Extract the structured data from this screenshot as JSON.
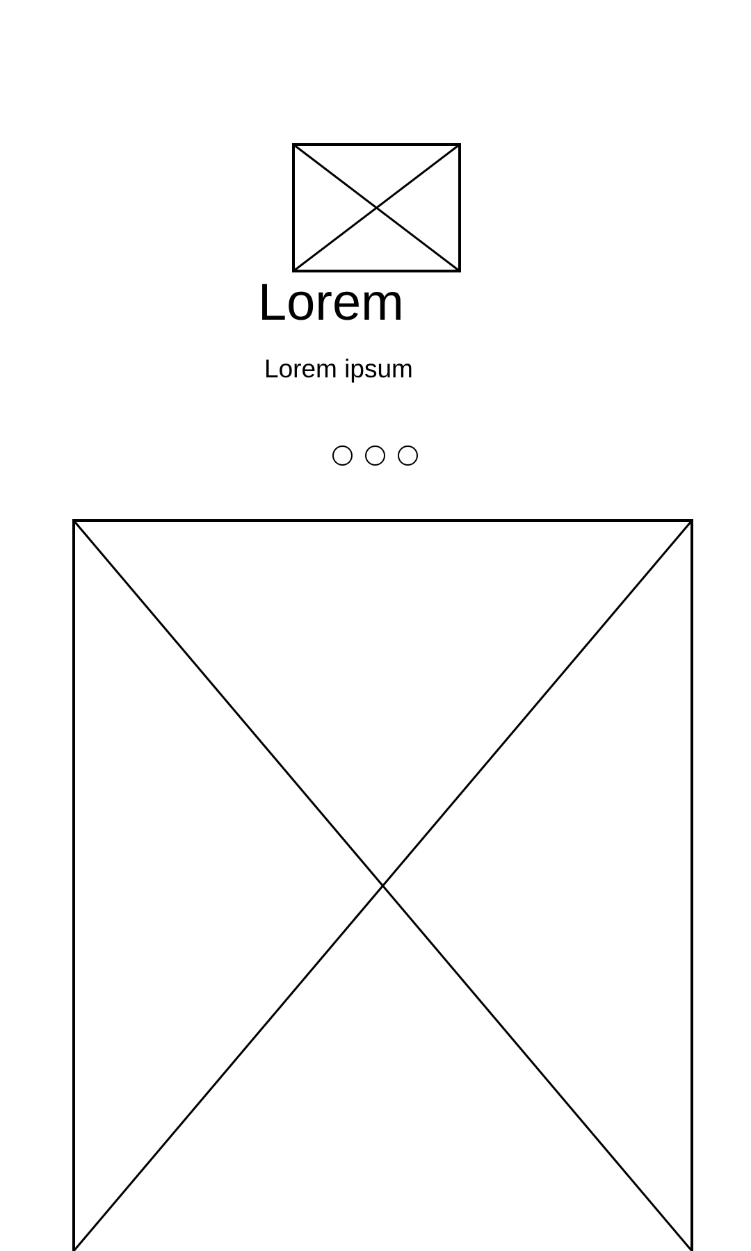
{
  "header": {
    "title": "Lorem",
    "subtitle": "Lorem ipsum"
  },
  "pager": {
    "page_count": 3
  },
  "colors": {
    "stroke": "#000000",
    "background": "#ffffff"
  },
  "icons": {
    "logo": "image-placeholder-icon",
    "hero": "image-placeholder-icon",
    "pager_dot": "circle-outline-icon"
  }
}
